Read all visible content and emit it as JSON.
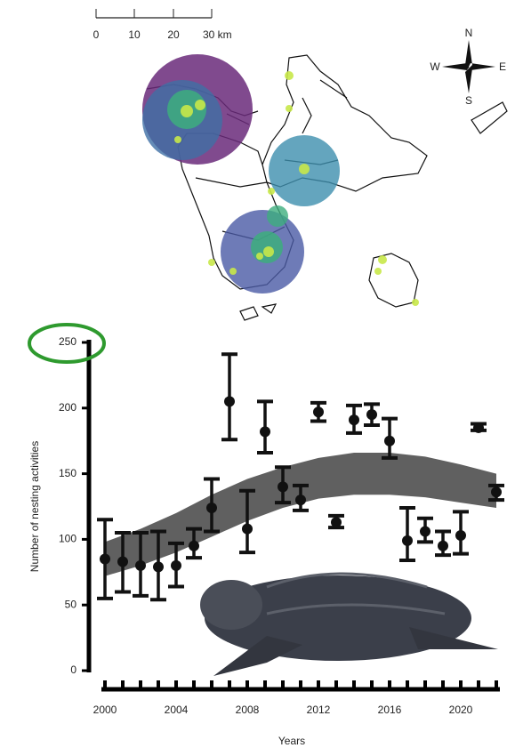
{
  "map": {
    "scale_labels": [
      "0",
      "10",
      "20",
      "30 km"
    ],
    "compass": {
      "n": "N",
      "s": "S",
      "e": "E",
      "w": "W"
    }
  },
  "chart_data": {
    "type": "errorbar",
    "x": [
      2000,
      2001,
      2002,
      2003,
      2004,
      2005,
      2006,
      2007,
      2008,
      2009,
      2010,
      2011,
      2012,
      2013,
      2014,
      2015,
      2016,
      2017,
      2018,
      2019,
      2020,
      2021,
      2022
    ],
    "values": [
      85,
      83,
      80,
      79,
      80,
      95,
      124,
      205,
      108,
      182,
      140,
      130,
      197,
      113,
      191,
      195,
      175,
      99,
      106,
      95,
      103,
      185,
      136
    ],
    "lower": [
      55,
      60,
      57,
      54,
      64,
      86,
      106,
      176,
      90,
      166,
      128,
      122,
      190,
      109,
      181,
      187,
      162,
      84,
      98,
      88,
      89,
      183,
      130
    ],
    "upper": [
      115,
      105,
      105,
      106,
      97,
      108,
      146,
      241,
      137,
      205,
      155,
      141,
      204,
      118,
      202,
      203,
      192,
      124,
      116,
      106,
      121,
      188,
      141
    ],
    "color": "#111111",
    "trend": {
      "x": [
        2000,
        2002,
        2004,
        2006,
        2008,
        2010,
        2012,
        2014,
        2016,
        2018,
        2020,
        2022
      ],
      "lower": [
        72,
        80,
        90,
        102,
        114,
        124,
        131,
        134,
        134,
        132,
        128,
        124
      ],
      "upper": [
        98,
        108,
        120,
        134,
        146,
        155,
        162,
        166,
        166,
        163,
        157,
        150
      ],
      "color": "#444444"
    },
    "xlim": [
      2000,
      2022
    ],
    "xticks": [
      2000,
      2004,
      2008,
      2012,
      2016,
      2020
    ],
    "ylim": [
      0,
      250
    ],
    "yticks": [
      0,
      50,
      100,
      150,
      200,
      250
    ],
    "ylabel": "Number of nesting activities",
    "xlabel": "Years"
  }
}
